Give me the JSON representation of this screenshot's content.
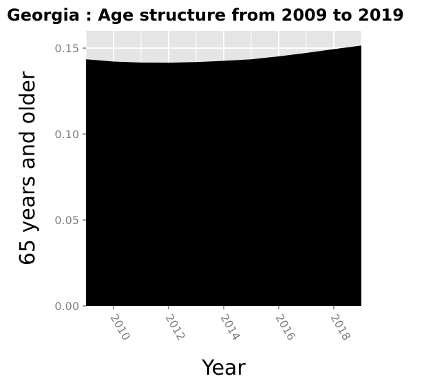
{
  "chart_data": {
    "type": "area",
    "title": "Georgia : Age structure from 2009 to 2019",
    "xlabel": "Year",
    "ylabel": "65 years and older",
    "x": [
      2009,
      2010,
      2011,
      2012,
      2013,
      2014,
      2015,
      2016,
      2017,
      2018,
      2019
    ],
    "series": [
      {
        "values": [
          0.1435,
          0.1422,
          0.1416,
          0.1415,
          0.1419,
          0.1426,
          0.1435,
          0.1452,
          0.1472,
          0.1494,
          0.1515
        ]
      }
    ],
    "xlim": [
      2009,
      2019
    ],
    "ylim": [
      0,
      0.15
    ],
    "x_ticks": [
      "2010",
      "2012",
      "2014",
      "2016",
      "2018"
    ],
    "y_ticks": [
      "0.00",
      "0.05",
      "0.10",
      "0.15"
    ],
    "grid": true,
    "fill_color": "#000000",
    "panel_color": "#e5e5e5",
    "grid_color": "#ffffff"
  }
}
